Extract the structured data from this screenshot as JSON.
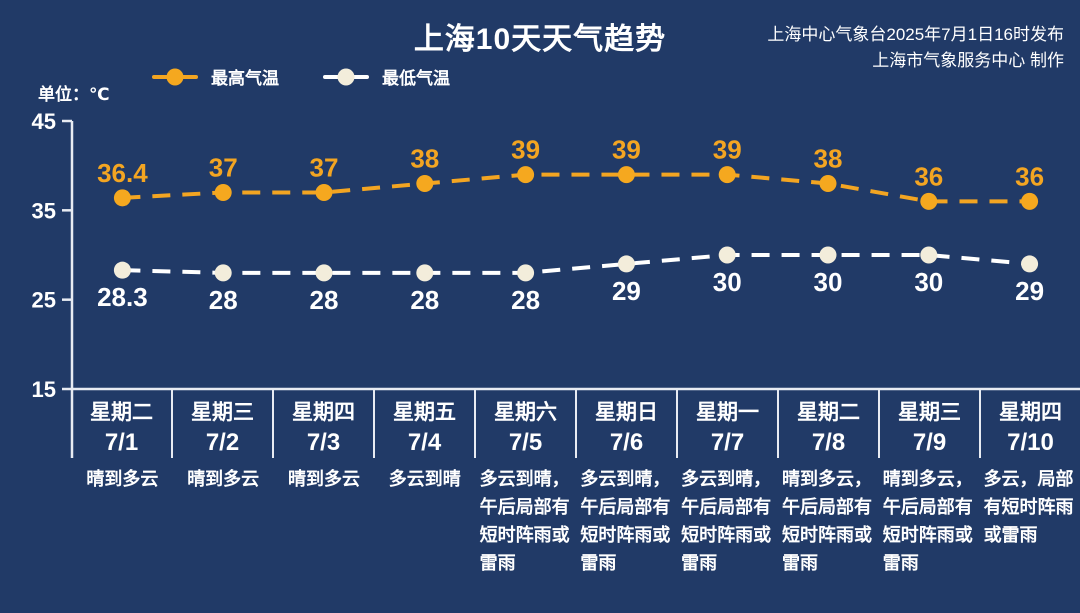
{
  "header": {
    "title": "上海10天天气趋势",
    "attribution_line1": "上海中心气象台2025年7月1日16时发布",
    "attribution_line2": "上海市气象服务中心 制作"
  },
  "unit_label": "单位：℃",
  "legend": {
    "high_label": "最高气温",
    "low_label": "最低气温"
  },
  "colors": {
    "background": "#213A67",
    "high_accent": "#F3A522",
    "low_marker": "#F3EDDB",
    "low_line": "#FFFFFF",
    "axis": "#E8EBF2",
    "text": "#FFFFFF"
  },
  "chart_data": {
    "type": "line",
    "title": "上海10天天气趋势",
    "categories": [
      "7/1",
      "7/2",
      "7/3",
      "7/4",
      "7/5",
      "7/6",
      "7/7",
      "7/8",
      "7/9",
      "7/10"
    ],
    "series": [
      {
        "name": "最高气温",
        "values": [
          36.4,
          37,
          37,
          38,
          39,
          39,
          39,
          38,
          36,
          36
        ],
        "color": "#F3A522",
        "marker_color": "#F5A81F",
        "label_color": "#F3A522",
        "label_position": "above"
      },
      {
        "name": "最低气温",
        "values": [
          28.3,
          28,
          28,
          28,
          28,
          29,
          30,
          30,
          30,
          29
        ],
        "color": "#FFFFFF",
        "marker_color": "#F3EDDB",
        "label_color": "#FFFFFF",
        "label_position": "below"
      }
    ],
    "xlabel": "",
    "ylabel": "单位：℃",
    "yticks": [
      45,
      35,
      25,
      15
    ],
    "ylim": [
      15,
      45
    ],
    "grid": false,
    "line_style": "dashed",
    "legend_position": "top-left"
  },
  "days": [
    {
      "weekday": "星期二",
      "date": "7/1",
      "desc": "晴到多云"
    },
    {
      "weekday": "星期三",
      "date": "7/2",
      "desc": "晴到多云"
    },
    {
      "weekday": "星期四",
      "date": "7/3",
      "desc": "晴到多云"
    },
    {
      "weekday": "星期五",
      "date": "7/4",
      "desc": "多云到晴"
    },
    {
      "weekday": "星期六",
      "date": "7/5",
      "desc": "多云到晴，午后局部有短时阵雨或雷雨"
    },
    {
      "weekday": "星期日",
      "date": "7/6",
      "desc": "多云到晴，午后局部有短时阵雨或雷雨"
    },
    {
      "weekday": "星期一",
      "date": "7/7",
      "desc": "多云到晴，午后局部有短时阵雨或雷雨"
    },
    {
      "weekday": "星期二",
      "date": "7/8",
      "desc": "晴到多云，午后局部有短时阵雨或雷雨"
    },
    {
      "weekday": "星期三",
      "date": "7/9",
      "desc": "晴到多云，午后局部有短时阵雨或雷雨"
    },
    {
      "weekday": "星期四",
      "date": "7/10",
      "desc": "多云，局部有短时阵雨或雷雨"
    }
  ]
}
